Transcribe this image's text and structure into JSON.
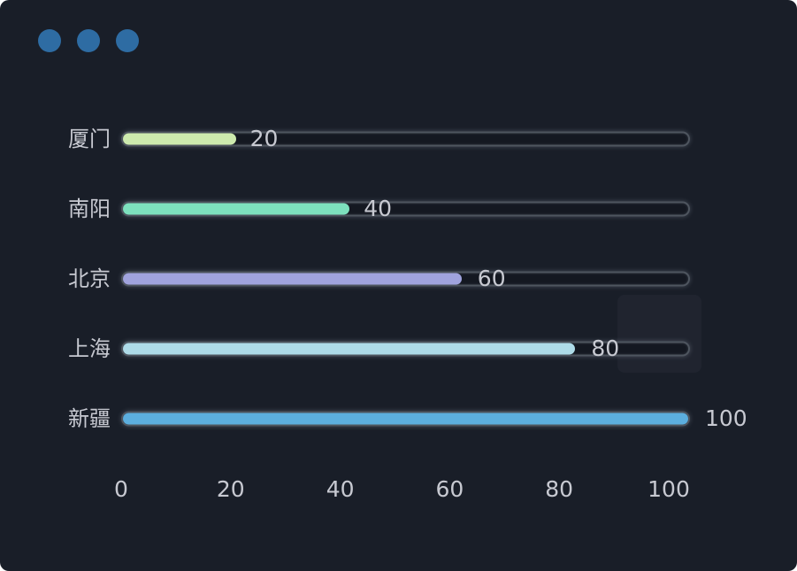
{
  "window": {
    "background_color": "#191e28",
    "control_dot_color": "#2e6ca3",
    "control_dots_count": 3
  },
  "chart_data": {
    "type": "bar",
    "orientation": "horizontal",
    "title": "",
    "xlabel": "",
    "ylabel": "",
    "categories": [
      "厦门",
      "南阳",
      "北京",
      "上海",
      "新疆"
    ],
    "values": [
      20,
      40,
      60,
      80,
      100
    ],
    "value_labels": [
      "20",
      "40",
      "60",
      "80",
      "100"
    ],
    "bar_colors": [
      "#cdeaae",
      "#7de0bd",
      "#a0a3dd",
      "#aedbe8",
      "#5caede"
    ],
    "xlim": [
      0,
      100
    ],
    "x_ticks": [
      "0",
      "20",
      "40",
      "60",
      "80",
      "100"
    ],
    "grid": false,
    "legend": false,
    "label_position": "right",
    "text_color": "#c7c9d1",
    "track_color": "#141821",
    "track_border_color": "#4e555f"
  }
}
